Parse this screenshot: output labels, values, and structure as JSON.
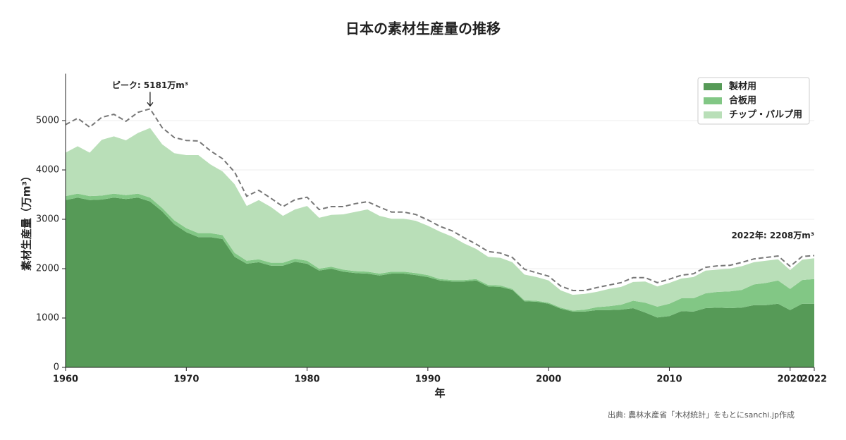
{
  "chart_data": {
    "type": "stacked-area",
    "title": "日本の素材生産量の推移",
    "x_label": "年",
    "y_label": "素材生産量（万m³）",
    "source": "出典: 農林水産省「木材統計」をもとにsanchi.jp作成",
    "x": [
      1960,
      1961,
      1962,
      1963,
      1964,
      1965,
      1966,
      1967,
      1968,
      1969,
      1970,
      1971,
      1972,
      1973,
      1974,
      1975,
      1976,
      1977,
      1978,
      1979,
      1980,
      1981,
      1982,
      1983,
      1984,
      1985,
      1986,
      1987,
      1988,
      1989,
      1990,
      1991,
      1992,
      1993,
      1994,
      1995,
      1996,
      1997,
      1998,
      1999,
      2000,
      2001,
      2002,
      2003,
      2004,
      2005,
      2006,
      2007,
      2008,
      2009,
      2010,
      2011,
      2012,
      2013,
      2014,
      2015,
      2016,
      2017,
      2018,
      2019,
      2020,
      2021,
      2022
    ],
    "series": [
      {
        "name": "製材用",
        "color": "#569a57",
        "values": [
          3390,
          3440,
          3390,
          3400,
          3440,
          3410,
          3440,
          3360,
          3160,
          2900,
          2740,
          2640,
          2640,
          2600,
          2240,
          2100,
          2130,
          2060,
          2060,
          2140,
          2100,
          1960,
          2000,
          1940,
          1910,
          1900,
          1860,
          1900,
          1900,
          1870,
          1830,
          1760,
          1740,
          1740,
          1760,
          1640,
          1630,
          1570,
          1340,
          1330,
          1290,
          1190,
          1130,
          1130,
          1160,
          1160,
          1170,
          1200,
          1110,
          1010,
          1040,
          1140,
          1130,
          1200,
          1210,
          1200,
          1210,
          1260,
          1260,
          1290,
          1160,
          1290,
          1290
        ]
      },
      {
        "name": "合板用",
        "color": "#82c785",
        "values": [
          80,
          80,
          80,
          80,
          80,
          80,
          80,
          80,
          70,
          80,
          80,
          80,
          80,
          80,
          80,
          60,
          60,
          60,
          60,
          60,
          60,
          40,
          40,
          40,
          40,
          40,
          40,
          40,
          40,
          40,
          40,
          30,
          30,
          30,
          30,
          30,
          30,
          20,
          20,
          20,
          20,
          20,
          20,
          40,
          60,
          80,
          100,
          150,
          200,
          220,
          250,
          260,
          270,
          300,
          320,
          340,
          360,
          420,
          450,
          470,
          430,
          480,
          500
        ]
      },
      {
        "name": "チップ・パルプ用",
        "color": "#b9dfb8",
        "values": [
          880,
          960,
          880,
          1130,
          1160,
          1110,
          1230,
          1410,
          1290,
          1360,
          1480,
          1580,
          1390,
          1290,
          1390,
          1110,
          1200,
          1130,
          950,
          1000,
          1110,
          1030,
          1050,
          1120,
          1200,
          1260,
          1170,
          1070,
          1070,
          1060,
          1000,
          960,
          880,
          740,
          610,
          570,
          560,
          540,
          520,
          480,
          450,
          350,
          320,
          320,
          310,
          350,
          360,
          380,
          430,
          410,
          420,
          400,
          430,
          460,
          450,
          460,
          480,
          450,
          450,
          430,
          380,
          410,
          420
        ]
      }
    ],
    "total": {
      "color": "#777777",
      "values": [
        4860,
        4990,
        4810,
        5010,
        5070,
        4930,
        5110,
        5181,
        4800,
        4600,
        4540,
        4530,
        4330,
        4170,
        3900,
        3410,
        3530,
        3370,
        3200,
        3340,
        3390,
        3140,
        3200,
        3200,
        3260,
        3300,
        3190,
        3090,
        3090,
        3040,
        2930,
        2800,
        2710,
        2570,
        2440,
        2290,
        2260,
        2170,
        1930,
        1860,
        1790,
        1590,
        1500,
        1500,
        1560,
        1610,
        1660,
        1760,
        1760,
        1660,
        1730,
        1810,
        1840,
        1970,
        2000,
        2010,
        2070,
        2140,
        2170,
        2200,
        1990,
        2190,
        2208
      ]
    },
    "annotations": [
      {
        "text": "ピーク: 5181万m³",
        "x": 1967
      },
      {
        "text": "2022年: 2208万m³",
        "x": 2022
      }
    ],
    "xlim": [
      1960,
      2022
    ],
    "xticks": [
      1960,
      1970,
      1980,
      1990,
      2000,
      2010,
      2020,
      2022
    ],
    "ylim": [
      0,
      5950
    ],
    "yticks": [
      0,
      1000,
      2000,
      3000,
      4000,
      5000
    ],
    "grid": true,
    "legend": "upper right"
  }
}
